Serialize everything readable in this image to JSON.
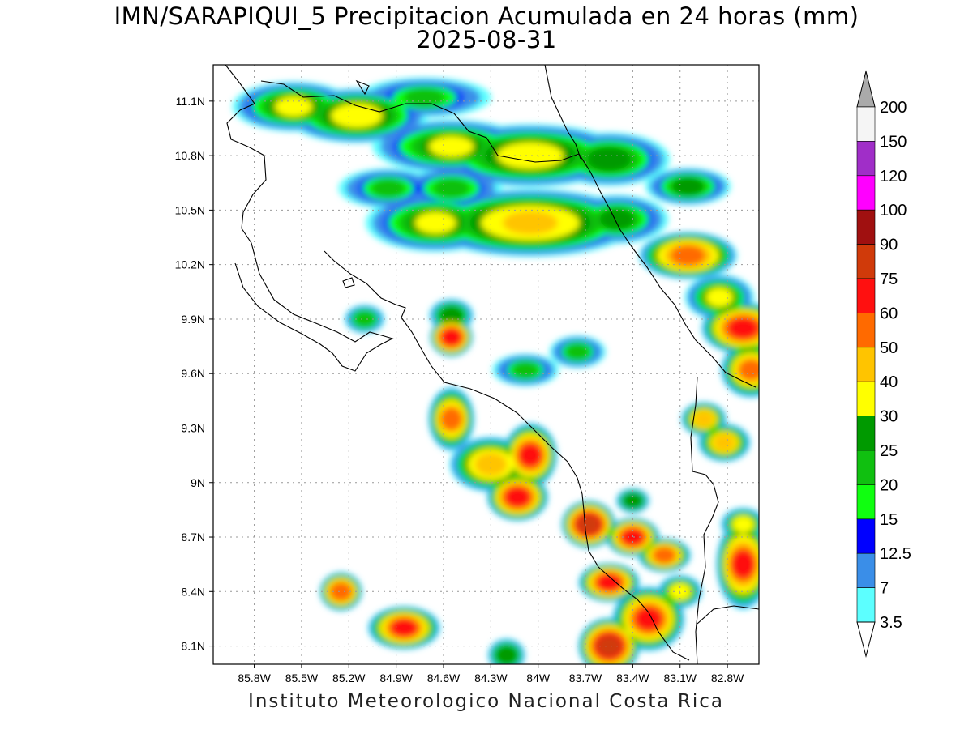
{
  "header": {
    "title": "IMN/SARAPIQUI_5 Precipitacion Acumulada en 24 horas (mm)",
    "date": "2025-08-31"
  },
  "footer": {
    "credit": "Instituto Meteorologico Nacional Costa Rica"
  },
  "map": {
    "lon_range": [
      -86.06,
      -82.6
    ],
    "lat_range": [
      8.0,
      11.3
    ],
    "lat_ticks": [
      "11.1N",
      "10.8N",
      "10.5N",
      "10.2N",
      "9.9N",
      "9.6N",
      "9.3N",
      "9N",
      "8.7N",
      "8.4N",
      "8.1N"
    ],
    "lon_ticks": [
      "85.8W",
      "85.5W",
      "85.2W",
      "84.9W",
      "84.6W",
      "84.3W",
      "84W",
      "83.7W",
      "83.4W",
      "83.1W",
      "82.8W"
    ],
    "grid": true
  },
  "colorbar": {
    "labels": [
      "200",
      "150",
      "120",
      "100",
      "90",
      "75",
      "60",
      "50",
      "40",
      "30",
      "25",
      "20",
      "15",
      "12.5",
      "7",
      "3.5"
    ],
    "colors": [
      "#aaaaaa",
      "#f5f5f5",
      "#a02ec8",
      "#ff00ff",
      "#a01010",
      "#d03a0a",
      "#ff1010",
      "#ff6a00",
      "#ffc400",
      "#ffff00",
      "#009a00",
      "#10c010",
      "#10ff10",
      "#0000ff",
      "#3a8ee8",
      "#5cffff"
    ],
    "triangle_top": "#aaaaaa",
    "triangle_bottom": "#ffffff"
  },
  "precip_cells": [
    {
      "lon": -85.55,
      "lat": 11.07,
      "rx": 0.3,
      "ry": 0.09,
      "level": 30
    },
    {
      "lon": -85.15,
      "lat": 11.02,
      "rx": 0.35,
      "ry": 0.1,
      "level": 35
    },
    {
      "lon": -84.72,
      "lat": 11.12,
      "rx": 0.35,
      "ry": 0.07,
      "level": 20
    },
    {
      "lon": -84.55,
      "lat": 10.85,
      "rx": 0.4,
      "ry": 0.1,
      "level": 30
    },
    {
      "lon": -84.05,
      "lat": 10.8,
      "rx": 0.5,
      "ry": 0.12,
      "level": 35
    },
    {
      "lon": -83.55,
      "lat": 10.78,
      "rx": 0.3,
      "ry": 0.1,
      "level": 28
    },
    {
      "lon": -84.95,
      "lat": 10.62,
      "rx": 0.25,
      "ry": 0.07,
      "level": 20
    },
    {
      "lon": -84.55,
      "lat": 10.62,
      "rx": 0.25,
      "ry": 0.07,
      "level": 22
    },
    {
      "lon": -84.65,
      "lat": 10.43,
      "rx": 0.35,
      "ry": 0.11,
      "level": 30
    },
    {
      "lon": -84.05,
      "lat": 10.43,
      "rx": 0.55,
      "ry": 0.13,
      "level": 42
    },
    {
      "lon": -83.5,
      "lat": 10.45,
      "rx": 0.25,
      "ry": 0.09,
      "level": 25
    },
    {
      "lon": -83.05,
      "lat": 10.63,
      "rx": 0.2,
      "ry": 0.06,
      "level": 25
    },
    {
      "lon": -83.05,
      "lat": 10.25,
      "rx": 0.22,
      "ry": 0.08,
      "level": 55
    },
    {
      "lon": -82.85,
      "lat": 10.02,
      "rx": 0.15,
      "ry": 0.08,
      "level": 30
    },
    {
      "lon": -82.7,
      "lat": 9.85,
      "rx": 0.18,
      "ry": 0.09,
      "level": 65
    },
    {
      "lon": -82.65,
      "lat": 9.62,
      "rx": 0.12,
      "ry": 0.1,
      "level": 50
    },
    {
      "lon": -82.82,
      "lat": 9.22,
      "rx": 0.1,
      "ry": 0.06,
      "level": 40
    },
    {
      "lon": -82.95,
      "lat": 9.35,
      "rx": 0.08,
      "ry": 0.05,
      "level": 40
    },
    {
      "lon": -82.7,
      "lat": 8.55,
      "rx": 0.1,
      "ry": 0.18,
      "level": 60
    },
    {
      "lon": -82.7,
      "lat": 8.77,
      "rx": 0.08,
      "ry": 0.05,
      "level": 30
    },
    {
      "lon": -84.55,
      "lat": 9.8,
      "rx": 0.07,
      "ry": 0.06,
      "level": 65
    },
    {
      "lon": -84.55,
      "lat": 9.92,
      "rx": 0.08,
      "ry": 0.05,
      "level": 28
    },
    {
      "lon": -85.1,
      "lat": 9.9,
      "rx": 0.07,
      "ry": 0.04,
      "level": 22
    },
    {
      "lon": -84.08,
      "lat": 9.62,
      "rx": 0.15,
      "ry": 0.05,
      "level": 20
    },
    {
      "lon": -83.75,
      "lat": 9.72,
      "rx": 0.12,
      "ry": 0.05,
      "level": 20
    },
    {
      "lon": -84.55,
      "lat": 9.35,
      "rx": 0.08,
      "ry": 0.12,
      "level": 50
    },
    {
      "lon": -84.3,
      "lat": 9.1,
      "rx": 0.18,
      "ry": 0.1,
      "level": 45
    },
    {
      "lon": -84.05,
      "lat": 9.15,
      "rx": 0.1,
      "ry": 0.12,
      "level": 62
    },
    {
      "lon": -84.13,
      "lat": 8.92,
      "rx": 0.12,
      "ry": 0.08,
      "level": 65
    },
    {
      "lon": -83.68,
      "lat": 8.77,
      "rx": 0.1,
      "ry": 0.08,
      "level": 75
    },
    {
      "lon": -83.4,
      "lat": 8.7,
      "rx": 0.1,
      "ry": 0.06,
      "level": 62
    },
    {
      "lon": -83.2,
      "lat": 8.6,
      "rx": 0.1,
      "ry": 0.05,
      "level": 50
    },
    {
      "lon": -83.55,
      "lat": 8.45,
      "rx": 0.12,
      "ry": 0.06,
      "level": 62
    },
    {
      "lon": -83.3,
      "lat": 8.25,
      "rx": 0.15,
      "ry": 0.12,
      "level": 62
    },
    {
      "lon": -83.55,
      "lat": 8.1,
      "rx": 0.12,
      "ry": 0.1,
      "level": 75
    },
    {
      "lon": -85.25,
      "lat": 8.4,
      "rx": 0.07,
      "ry": 0.06,
      "level": 55
    },
    {
      "lon": -84.85,
      "lat": 8.2,
      "rx": 0.15,
      "ry": 0.07,
      "level": 60
    },
    {
      "lon": -84.2,
      "lat": 8.05,
      "rx": 0.06,
      "ry": 0.05,
      "level": 28
    },
    {
      "lon": -83.1,
      "lat": 8.4,
      "rx": 0.08,
      "ry": 0.05,
      "level": 30
    },
    {
      "lon": -83.4,
      "lat": 8.9,
      "rx": 0.05,
      "ry": 0.03,
      "level": 25
    }
  ]
}
